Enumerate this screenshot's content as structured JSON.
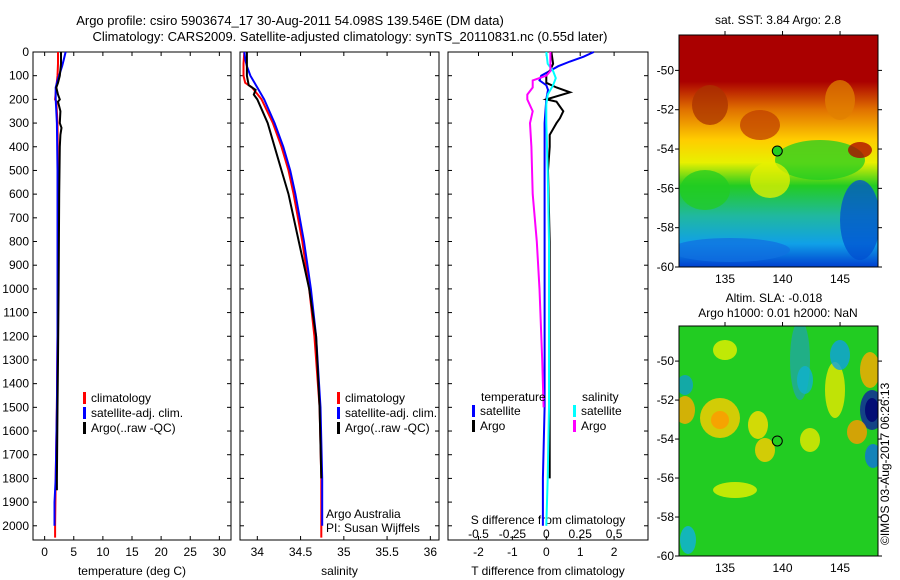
{
  "header": {
    "title_line1": "Argo profile: csiro 5903674_17 30-Aug-2011 54.098S 139.546E (DM data)",
    "title_line2": "Climatology: CARS2009. Satellite-adjusted climatology: synTS_20110831.nc (0.55d later)"
  },
  "copyright": "©IMOS 03-Aug-2017 06:26:13",
  "colors": {
    "climatology": "#ff0000",
    "satellite": "#0000ff",
    "argo": "#000000",
    "sal_satellite": "#00ffff",
    "sal_argo": "#ff00ff"
  },
  "chart_data": [
    {
      "type": "line",
      "name": "temperature-profile",
      "xlabel": "temperature (deg C)",
      "ylabel": "",
      "xlim": [
        -2,
        32
      ],
      "ylim": [
        2060,
        0
      ],
      "xticks": [
        0,
        5,
        10,
        15,
        20,
        25,
        30
      ],
      "yticks": [
        0,
        100,
        200,
        300,
        400,
        500,
        600,
        700,
        800,
        900,
        1000,
        1100,
        1200,
        1300,
        1400,
        1500,
        1600,
        1700,
        1800,
        1900,
        2000
      ],
      "legend": [
        "climatology",
        "satellite-adj. clim.",
        "Argo(..raw -QC)"
      ],
      "legend_position": "center",
      "series": [
        {
          "name": "climatology",
          "color_key": "climatology",
          "depth": [
            0,
            50,
            100,
            150,
            200,
            210,
            300,
            500,
            800,
            1000,
            1200,
            1500,
            1800,
            2000,
            2050
          ],
          "values": [
            2.3,
            2.3,
            2.2,
            2.0,
            1.8,
            2.0,
            2.2,
            2.3,
            2.3,
            2.3,
            2.2,
            2.1,
            1.9,
            1.8,
            1.8
          ]
        },
        {
          "name": "satellite-adj. clim.",
          "color_key": "satellite",
          "depth": [
            0,
            30,
            60,
            90,
            120,
            150,
            200,
            300,
            500,
            800,
            1000,
            1200,
            1500,
            1800,
            1900,
            2000
          ],
          "values": [
            3.6,
            3.3,
            3.0,
            2.6,
            2.2,
            1.9,
            1.9,
            2.1,
            2.2,
            2.2,
            2.2,
            2.2,
            2.1,
            1.9,
            1.7,
            1.7
          ]
        },
        {
          "name": "Argo(..raw -QC)",
          "color_key": "argo",
          "depth": [
            0,
            50,
            100,
            130,
            150,
            180,
            200,
            210,
            250,
            300,
            320,
            350,
            400,
            600,
            1000,
            1300,
            1500,
            1800,
            1850
          ],
          "values": [
            2.8,
            2.8,
            2.6,
            2.3,
            2.0,
            2.3,
            2.6,
            2.3,
            2.7,
            2.6,
            2.9,
            2.7,
            2.6,
            2.5,
            2.4,
            2.3,
            2.2,
            2.1,
            2.1
          ]
        }
      ]
    },
    {
      "type": "line",
      "name": "salinity-profile",
      "xlabel": "salinity",
      "xlim": [
        33.8,
        36.1
      ],
      "ylim": [
        2060,
        0
      ],
      "xticks": [
        34,
        34.5,
        35,
        35.5,
        36
      ],
      "legend": [
        "climatology",
        "satellite-adj. clim.",
        "Argo(..raw -QC)"
      ],
      "legend_position": "right",
      "annotation": [
        "Argo Australia",
        "PI: Susan Wijffels"
      ],
      "series": [
        {
          "name": "climatology",
          "color_key": "climatology",
          "depth": [
            0,
            50,
            100,
            130,
            150,
            200,
            300,
            400,
            500,
            600,
            800,
            1000,
            1200,
            1500,
            1800,
            2050
          ],
          "values": [
            33.85,
            33.84,
            33.84,
            33.86,
            33.94,
            34.05,
            34.18,
            34.28,
            34.36,
            34.42,
            34.52,
            34.6,
            34.66,
            34.72,
            34.74,
            34.74
          ]
        },
        {
          "name": "satellite-adj. clim.",
          "color_key": "satellite",
          "depth": [
            0,
            30,
            60,
            100,
            150,
            200,
            300,
            400,
            500,
            600,
            800,
            1000,
            1200,
            1500,
            1800,
            2000
          ],
          "values": [
            33.85,
            33.86,
            33.88,
            33.92,
            34.0,
            34.08,
            34.2,
            34.3,
            34.38,
            34.44,
            34.54,
            34.62,
            34.68,
            34.73,
            34.75,
            34.75
          ]
        },
        {
          "name": "Argo(..raw -QC)",
          "color_key": "argo",
          "depth": [
            0,
            50,
            100,
            140,
            160,
            180,
            200,
            250,
            300,
            400,
            500,
            600,
            800,
            1000,
            1200,
            1500,
            1800
          ],
          "values": [
            33.88,
            33.88,
            33.88,
            33.9,
            33.98,
            33.96,
            34.0,
            34.06,
            34.12,
            34.2,
            34.28,
            34.36,
            34.48,
            34.6,
            34.68,
            34.72,
            34.74
          ]
        }
      ]
    },
    {
      "type": "line",
      "name": "difference-profile",
      "xlabel": "T difference from climatology",
      "xlabel_top": "S difference from climatology",
      "xlim": [
        -2.9,
        3.0
      ],
      "xticks": [
        -2,
        -1,
        0,
        1,
        2
      ],
      "xlim_s": [
        -0.725,
        0.75
      ],
      "xticks_s": [
        "-0.5",
        "-0.25",
        "0",
        "0.25",
        "0.5"
      ],
      "ylim": [
        2060,
        0
      ],
      "legend_temperature_title": "temperature",
      "legend_salinity_title": "salinity",
      "legend_temperature": [
        "satellite",
        "Argo"
      ],
      "legend_salinity": [
        "satellite",
        "Argo"
      ],
      "series": [
        {
          "name": "temperature satellite",
          "color_key": "satellite",
          "depth": [
            0,
            20,
            40,
            60,
            80,
            100,
            120,
            140,
            160,
            200,
            300,
            500,
            800,
            1000,
            1500,
            1800,
            2000
          ],
          "values": [
            1.4,
            1.1,
            0.7,
            0.35,
            0.1,
            -0.15,
            -0.2,
            0.0,
            0.05,
            0.0,
            -0.05,
            -0.05,
            -0.05,
            -0.05,
            -0.05,
            -0.1,
            -0.1
          ]
        },
        {
          "name": "temperature Argo",
          "color_key": "argo",
          "depth": [
            0,
            50,
            80,
            100,
            130,
            150,
            170,
            200,
            210,
            230,
            250,
            280,
            300,
            350,
            400,
            500,
            800,
            1200,
            1500,
            1800
          ],
          "values": [
            0.15,
            0.2,
            0.1,
            0.0,
            0.0,
            0.3,
            0.7,
            0.0,
            0.3,
            0.4,
            0.5,
            0.4,
            0.3,
            0.1,
            0.1,
            0.05,
            0.1,
            0.1,
            0.1,
            0.1
          ]
        },
        {
          "name": "salinity satellite",
          "color_key": "sal_satellite",
          "depth": [
            0,
            50,
            80,
            110,
            140,
            180,
            220,
            300,
            500,
            800,
            1200,
            1500,
            1800,
            2000
          ],
          "values": [
            0.0,
            0.01,
            0.05,
            0.07,
            0.05,
            0.01,
            0.0,
            0.0,
            0.01,
            0.02,
            0.02,
            0.02,
            0.01,
            0.0
          ]
        },
        {
          "name": "salinity Argo",
          "color_key": "sal_argo",
          "depth": [
            0,
            80,
            100,
            120,
            150,
            180,
            200,
            250,
            300,
            400,
            600,
            800,
            1000,
            1300,
            1500
          ],
          "values": [
            0.03,
            0.03,
            0.0,
            -0.1,
            -0.1,
            -0.14,
            -0.14,
            -0.1,
            -0.12,
            -0.11,
            -0.1,
            -0.07,
            -0.05,
            -0.03,
            -0.02
          ]
        }
      ]
    },
    {
      "type": "heatmap",
      "name": "sst-map",
      "title": "sat. SST: 3.84 Argo: 2.8",
      "xticks": [
        135,
        140,
        145
      ],
      "yticks": [
        -50,
        -52,
        -54,
        -56,
        -58,
        -60
      ],
      "xlim": [
        131,
        148.3
      ],
      "ylim": [
        -60,
        -48.2
      ],
      "marker": {
        "lon": 139.546,
        "lat": -54.098,
        "color": "#22cc22"
      }
    },
    {
      "type": "heatmap",
      "name": "sla-map",
      "title": "Altim. SLA: -0.018",
      "subtitle": "Argo h1000: 0.01 h2000: NaN",
      "xticks": [
        135,
        140,
        145
      ],
      "yticks": [
        -50,
        -52,
        -54,
        -56,
        -58,
        -60
      ],
      "xlim": [
        131,
        148.3
      ],
      "ylim": [
        -60,
        -48.2
      ],
      "marker": {
        "lon": 139.546,
        "lat": -54.098,
        "color": "#22cc22"
      }
    }
  ]
}
